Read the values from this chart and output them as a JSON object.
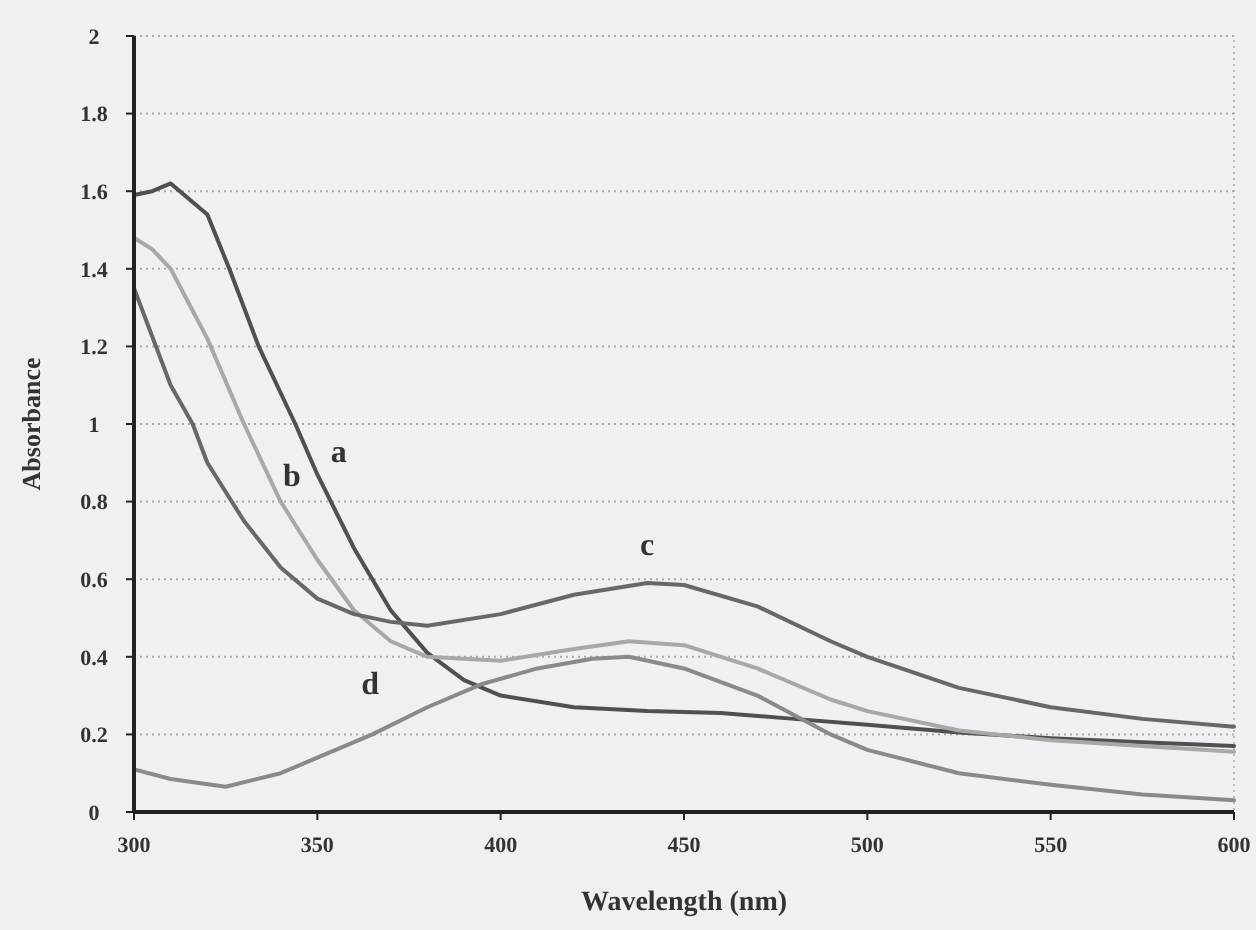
{
  "chart_data": {
    "type": "line",
    "xlabel": "Wavelength (nm)",
    "ylabel": "Absorbance",
    "xlim": [
      300,
      600
    ],
    "ylim": [
      0,
      2
    ],
    "xticks": [
      300,
      350,
      400,
      450,
      500,
      550,
      600
    ],
    "yticks": [
      0,
      {
        "value": 0.2,
        "label": "0.2"
      },
      {
        "value": 0.4,
        "label": "0.4"
      },
      {
        "value": 0.6,
        "label": "0.6"
      },
      {
        "value": 0.8,
        "label": "0.8"
      },
      1,
      {
        "value": 1.2,
        "label": "1.2"
      },
      {
        "value": 1.4,
        "label": "1.4"
      },
      {
        "value": 1.6,
        "label": "1.6"
      },
      {
        "value": 1.8,
        "label": "1.8"
      },
      2
    ],
    "grid": "y",
    "marker": "none",
    "line_style": "solid",
    "series": [
      {
        "name": "a",
        "color": "#505050",
        "x": [
          300,
          305,
          310,
          315,
          320,
          326,
          334,
          344,
          350,
          360,
          370,
          380,
          390,
          400,
          420,
          440,
          460,
          480,
          500,
          525,
          550,
          575,
          600
        ],
        "values": [
          1.59,
          1.6,
          1.62,
          1.58,
          1.54,
          1.4,
          1.2,
          1.0,
          0.87,
          0.68,
          0.52,
          0.41,
          0.34,
          0.3,
          0.27,
          0.26,
          0.255,
          0.24,
          0.225,
          0.205,
          0.19,
          0.18,
          0.17
        ]
      },
      {
        "name": "b",
        "color": "#a8a8a8",
        "x": [
          300,
          305,
          310,
          320,
          330,
          340,
          350,
          360,
          370,
          380,
          400,
          420,
          435,
          450,
          470,
          490,
          500,
          525,
          550,
          575,
          600
        ],
        "values": [
          1.48,
          1.45,
          1.4,
          1.22,
          1.0,
          0.8,
          0.65,
          0.52,
          0.44,
          0.4,
          0.39,
          0.42,
          0.44,
          0.43,
          0.37,
          0.29,
          0.26,
          0.21,
          0.185,
          0.17,
          0.155
        ]
      },
      {
        "name": "c",
        "color": "#686868",
        "x": [
          300,
          310,
          316,
          320,
          330,
          340,
          350,
          360,
          370,
          380,
          400,
          420,
          440,
          450,
          470,
          490,
          500,
          525,
          550,
          575,
          600
        ],
        "values": [
          1.35,
          1.1,
          1.0,
          0.9,
          0.75,
          0.63,
          0.55,
          0.51,
          0.49,
          0.48,
          0.51,
          0.56,
          0.59,
          0.585,
          0.53,
          0.44,
          0.4,
          0.32,
          0.27,
          0.24,
          0.22
        ]
      },
      {
        "name": "d",
        "color": "#8a8a8a",
        "x": [
          300,
          310,
          325,
          340,
          350,
          365,
          380,
          395,
          410,
          425,
          435,
          450,
          470,
          490,
          500,
          525,
          550,
          575,
          600
        ],
        "values": [
          0.11,
          0.085,
          0.065,
          0.1,
          0.14,
          0.2,
          0.27,
          0.33,
          0.37,
          0.395,
          0.4,
          0.37,
          0.3,
          0.2,
          0.16,
          0.1,
          0.07,
          0.045,
          0.03
        ]
      }
    ]
  }
}
